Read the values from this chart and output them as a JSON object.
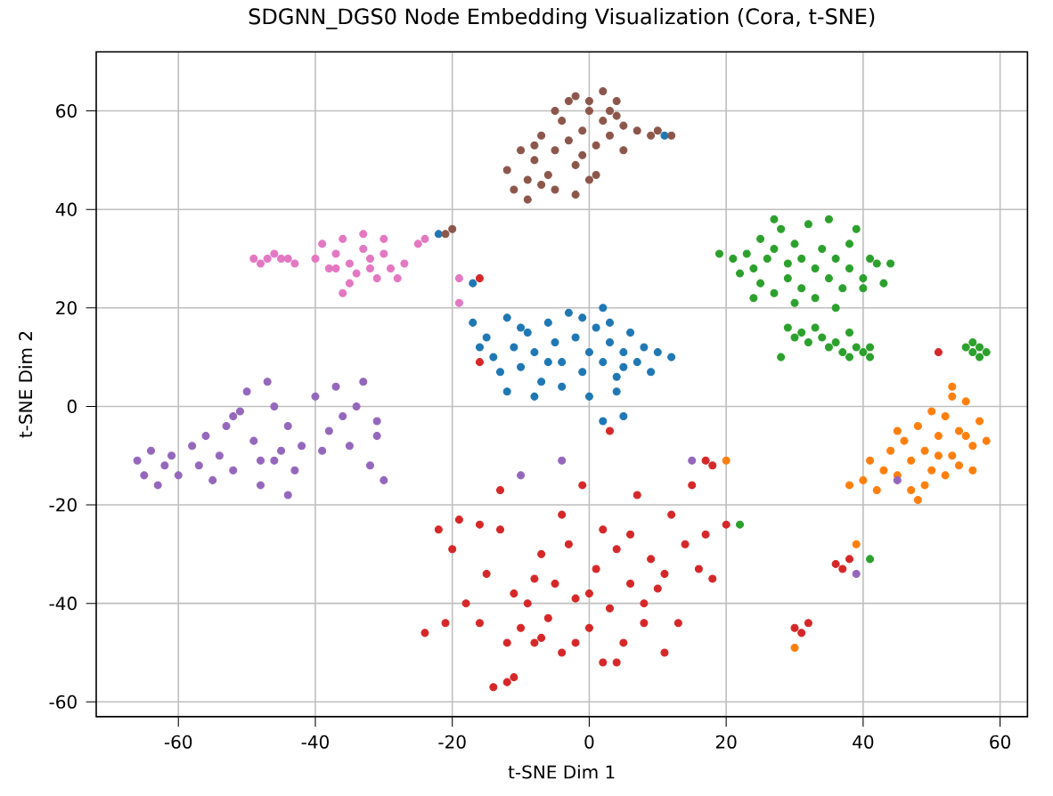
{
  "chart_data": {
    "type": "scatter",
    "title": "SDGNN_DGS0 Node Embedding Visualization (Cora, t-SNE)",
    "xlabel": "t-SNE Dim 1",
    "ylabel": "t-SNE Dim 2",
    "xlim": [
      -72,
      64
    ],
    "ylim": [
      -63,
      72
    ],
    "xticks": [
      -60,
      -40,
      -20,
      0,
      20,
      40,
      60
    ],
    "yticks": [
      -60,
      -40,
      -20,
      0,
      20,
      40,
      60
    ],
    "grid": true,
    "marker": "circle",
    "series": [
      {
        "color": "#1f77b4",
        "x": [
          -17,
          -15,
          -14,
          -13,
          -12,
          -11,
          -10,
          -9,
          -8,
          -7,
          -6,
          -5,
          -4,
          -3,
          -2,
          -1,
          0,
          1,
          2,
          3,
          4,
          5,
          6,
          7,
          8,
          9,
          10,
          12,
          -12,
          -8,
          -4,
          0,
          2,
          -1,
          3,
          5,
          -16,
          -10,
          -6,
          4,
          5,
          2,
          -22,
          -17,
          11
        ],
        "values": [
          17,
          14,
          10,
          7,
          18,
          12,
          8,
          15,
          11,
          5,
          17,
          13,
          9,
          19,
          14,
          7,
          11,
          16,
          9,
          13,
          6,
          11,
          15,
          9,
          12,
          7,
          11,
          10,
          3,
          2,
          4,
          2,
          20,
          18,
          17,
          8,
          12,
          16,
          9,
          3,
          -2,
          -3,
          35,
          25,
          55
        ]
      },
      {
        "color": "#ff7f0e",
        "x": [
          40,
          41,
          42,
          43,
          44,
          45,
          46,
          47,
          48,
          49,
          50,
          51,
          52,
          53,
          54,
          55,
          56,
          57,
          52,
          54,
          50,
          53,
          55,
          49,
          47,
          51,
          56,
          58,
          53,
          45,
          38,
          48,
          39,
          30,
          20
        ],
        "values": [
          -15,
          -11,
          -17,
          -13,
          -9,
          -14,
          -7,
          -11,
          -4,
          -9,
          -13,
          -6,
          -2,
          -10,
          -5,
          1,
          -8,
          -3,
          -14,
          -12,
          -1,
          2,
          -6,
          -16,
          -17,
          -10,
          -13,
          -7,
          4,
          -5,
          -16,
          -19,
          -28,
          -49,
          -11
        ]
      },
      {
        "color": "#2ca02c",
        "x": [
          21,
          22,
          23,
          24,
          25,
          25,
          26,
          27,
          27,
          28,
          29,
          29,
          30,
          31,
          31,
          32,
          33,
          33,
          34,
          35,
          35,
          36,
          37,
          38,
          38,
          39,
          40,
          41,
          42,
          44,
          24,
          27,
          30,
          36,
          40,
          43,
          29,
          30,
          31,
          32,
          33,
          34,
          35,
          36,
          37,
          38,
          39,
          40,
          41,
          41,
          28,
          38,
          55,
          56,
          57,
          58,
          56,
          57,
          19,
          41,
          22
        ],
        "values": [
          30,
          27,
          31,
          28,
          34,
          25,
          30,
          32,
          23,
          36,
          29,
          26,
          33,
          24,
          30,
          37,
          28,
          22,
          32,
          26,
          38,
          30,
          24,
          33,
          28,
          36,
          26,
          30,
          29,
          29,
          22,
          38,
          21,
          20,
          24,
          25,
          16,
          14,
          15,
          13,
          16,
          14,
          12,
          13,
          11,
          10,
          12,
          11,
          12,
          10,
          10,
          15,
          12,
          11,
          12,
          11,
          13,
          10,
          31,
          -31,
          -24
        ]
      },
      {
        "color": "#d62728",
        "x": [
          -22,
          -19,
          -16,
          -13,
          -20,
          -13,
          -24,
          -21,
          -18,
          -15,
          -14,
          -12,
          -11,
          -10,
          -9,
          -8,
          -7,
          -6,
          -5,
          -4,
          -3,
          -2,
          -1,
          0,
          1,
          2,
          3,
          4,
          5,
          6,
          7,
          8,
          9,
          10,
          11,
          12,
          13,
          14,
          16,
          17,
          18,
          20,
          -11,
          -7,
          -4,
          0,
          4,
          -16,
          -2,
          6,
          17,
          18,
          15,
          36,
          37,
          38,
          30,
          31,
          32,
          11,
          51,
          -16,
          -16,
          3,
          -8,
          -12,
          2,
          8
        ],
        "values": [
          -25,
          -23,
          -24,
          -25,
          -29,
          -17,
          -46,
          -44,
          -40,
          -34,
          -57,
          -56,
          -55,
          -45,
          -40,
          -48,
          -30,
          -43,
          -36,
          -50,
          -28,
          -39,
          -16,
          -45,
          -33,
          -25,
          -41,
          -29,
          -48,
          -36,
          -18,
          -44,
          -31,
          -37,
          -50,
          -22,
          -44,
          -28,
          -33,
          -26,
          -35,
          -24,
          -38,
          -47,
          -22,
          -38,
          -52,
          -44,
          -48,
          -26,
          -11,
          -12,
          -16,
          -32,
          -33,
          -31,
          -45,
          -46,
          -44,
          -34,
          11,
          9,
          26,
          -5,
          -35,
          -48,
          -52,
          -40
        ]
      },
      {
        "color": "#9467bd",
        "x": [
          -66,
          -65,
          -64,
          -63,
          -62,
          -61,
          -60,
          -58,
          -57,
          -56,
          -55,
          -54,
          -53,
          -52,
          -51,
          -50,
          -49,
          -48,
          -47,
          -46,
          -45,
          -44,
          -43,
          -42,
          -44,
          -48,
          -40,
          -38,
          -37,
          -36,
          -35,
          -34,
          -33,
          -32,
          -31,
          -30,
          -31,
          -39,
          -52,
          -46,
          -10,
          -4,
          15,
          45,
          39
        ],
        "values": [
          -11,
          -14,
          -9,
          -16,
          -12,
          -10,
          -14,
          -8,
          -12,
          -6,
          -15,
          -10,
          -4,
          -13,
          -1,
          3,
          -7,
          -11,
          5,
          0,
          -9,
          -4,
          -13,
          -8,
          -18,
          -16,
          2,
          -5,
          4,
          -2,
          -8,
          0,
          5,
          -12,
          -3,
          -15,
          -6,
          -9,
          -2,
          -11,
          -14,
          -11,
          -11,
          -15,
          -34
        ]
      },
      {
        "color": "#8c564b",
        "x": [
          -12,
          -10,
          -9,
          -8,
          -7,
          -6,
          -5,
          -4,
          -3,
          -2,
          -1,
          0,
          1,
          2,
          3,
          4,
          5,
          -11,
          -9,
          -7,
          -5,
          -3,
          -1,
          1,
          3,
          5,
          -2,
          0,
          2,
          4,
          -8,
          -5,
          -2,
          7,
          9,
          10,
          12,
          -20,
          -21,
          0
        ],
        "values": [
          48,
          52,
          46,
          50,
          55,
          47,
          52,
          58,
          54,
          49,
          56,
          60,
          53,
          58,
          55,
          62,
          57,
          44,
          42,
          45,
          60,
          62,
          51,
          47,
          60,
          52,
          63,
          62,
          64,
          59,
          53,
          44,
          43,
          56,
          55,
          56,
          55,
          36,
          35,
          46
        ]
      },
      {
        "color": "#e377c2",
        "x": [
          -49,
          -48,
          -47,
          -46,
          -45,
          -44,
          -43,
          -40,
          -39,
          -38,
          -37,
          -36,
          -35,
          -34,
          -33,
          -32,
          -31,
          -30,
          -29,
          -28,
          -36,
          -35,
          -33,
          -30,
          -27,
          -37,
          -32,
          -24,
          -25,
          -19,
          -19
        ],
        "values": [
          30,
          29,
          30,
          31,
          30,
          30,
          29,
          30,
          33,
          28,
          31,
          34,
          29,
          27,
          32,
          30,
          26,
          31,
          28,
          26,
          23,
          25,
          35,
          34,
          29,
          28,
          28,
          34,
          33,
          26,
          21
        ]
      }
    ]
  }
}
